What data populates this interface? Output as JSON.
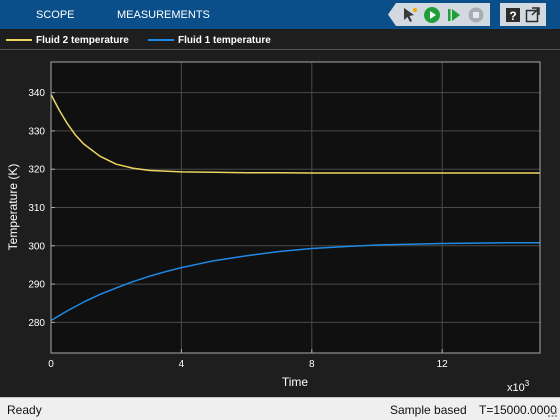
{
  "toolstrip": {
    "tabs": [
      {
        "label": "SCOPE"
      },
      {
        "label": "MEASUREMENTS"
      }
    ],
    "icons": [
      "highlight-signal-icon",
      "run-icon",
      "step-forward-icon",
      "stop-icon",
      "help-icon",
      "undock-icon"
    ]
  },
  "legend": [
    {
      "label": "Fluid 2 temperature",
      "color": "#edd65f"
    },
    {
      "label": "Fluid 1 temperature",
      "color": "#1f8ae6"
    }
  ],
  "chart_data": {
    "type": "line",
    "xlabel": "Time",
    "ylabel": "Temperature (K)",
    "x_exponent_label": "x10",
    "x_exponent_power": "3",
    "xlim": [
      0,
      15
    ],
    "ylim": [
      272,
      348
    ],
    "xticks": [
      0,
      4,
      8,
      12
    ],
    "yticks": [
      280,
      290,
      300,
      310,
      320,
      330,
      340
    ],
    "grid": true,
    "series": [
      {
        "name": "Fluid 2 temperature",
        "color": "#edd65f",
        "x": [
          0,
          0.25,
          0.5,
          0.75,
          1,
          1.5,
          2,
          2.5,
          3,
          4,
          5,
          6,
          7,
          8,
          9,
          10,
          11,
          12,
          13,
          14,
          15
        ],
        "y": [
          339.5,
          335.5,
          331.9,
          328.9,
          326.6,
          323.4,
          321.3,
          320.3,
          319.7,
          319.3,
          319.2,
          319.1,
          319.1,
          319.0,
          319.0,
          319.0,
          319.0,
          319.0,
          319.0,
          319.0,
          319.0
        ]
      },
      {
        "name": "Fluid 1 temperature",
        "color": "#1f8ae6",
        "x": [
          0,
          0.5,
          1,
          1.5,
          2,
          2.5,
          3,
          3.5,
          4,
          5,
          6,
          7,
          8,
          9,
          10,
          11,
          12,
          13,
          14,
          15
        ],
        "y": [
          280.5,
          283.0,
          285.3,
          287.3,
          289.0,
          290.6,
          292.0,
          293.2,
          294.3,
          296.1,
          297.4,
          298.5,
          299.3,
          299.8,
          300.2,
          300.4,
          300.6,
          300.7,
          300.8,
          300.8
        ]
      }
    ]
  },
  "status": {
    "ready": "Ready",
    "mode": "Sample based",
    "time": "T=15000.0000"
  }
}
